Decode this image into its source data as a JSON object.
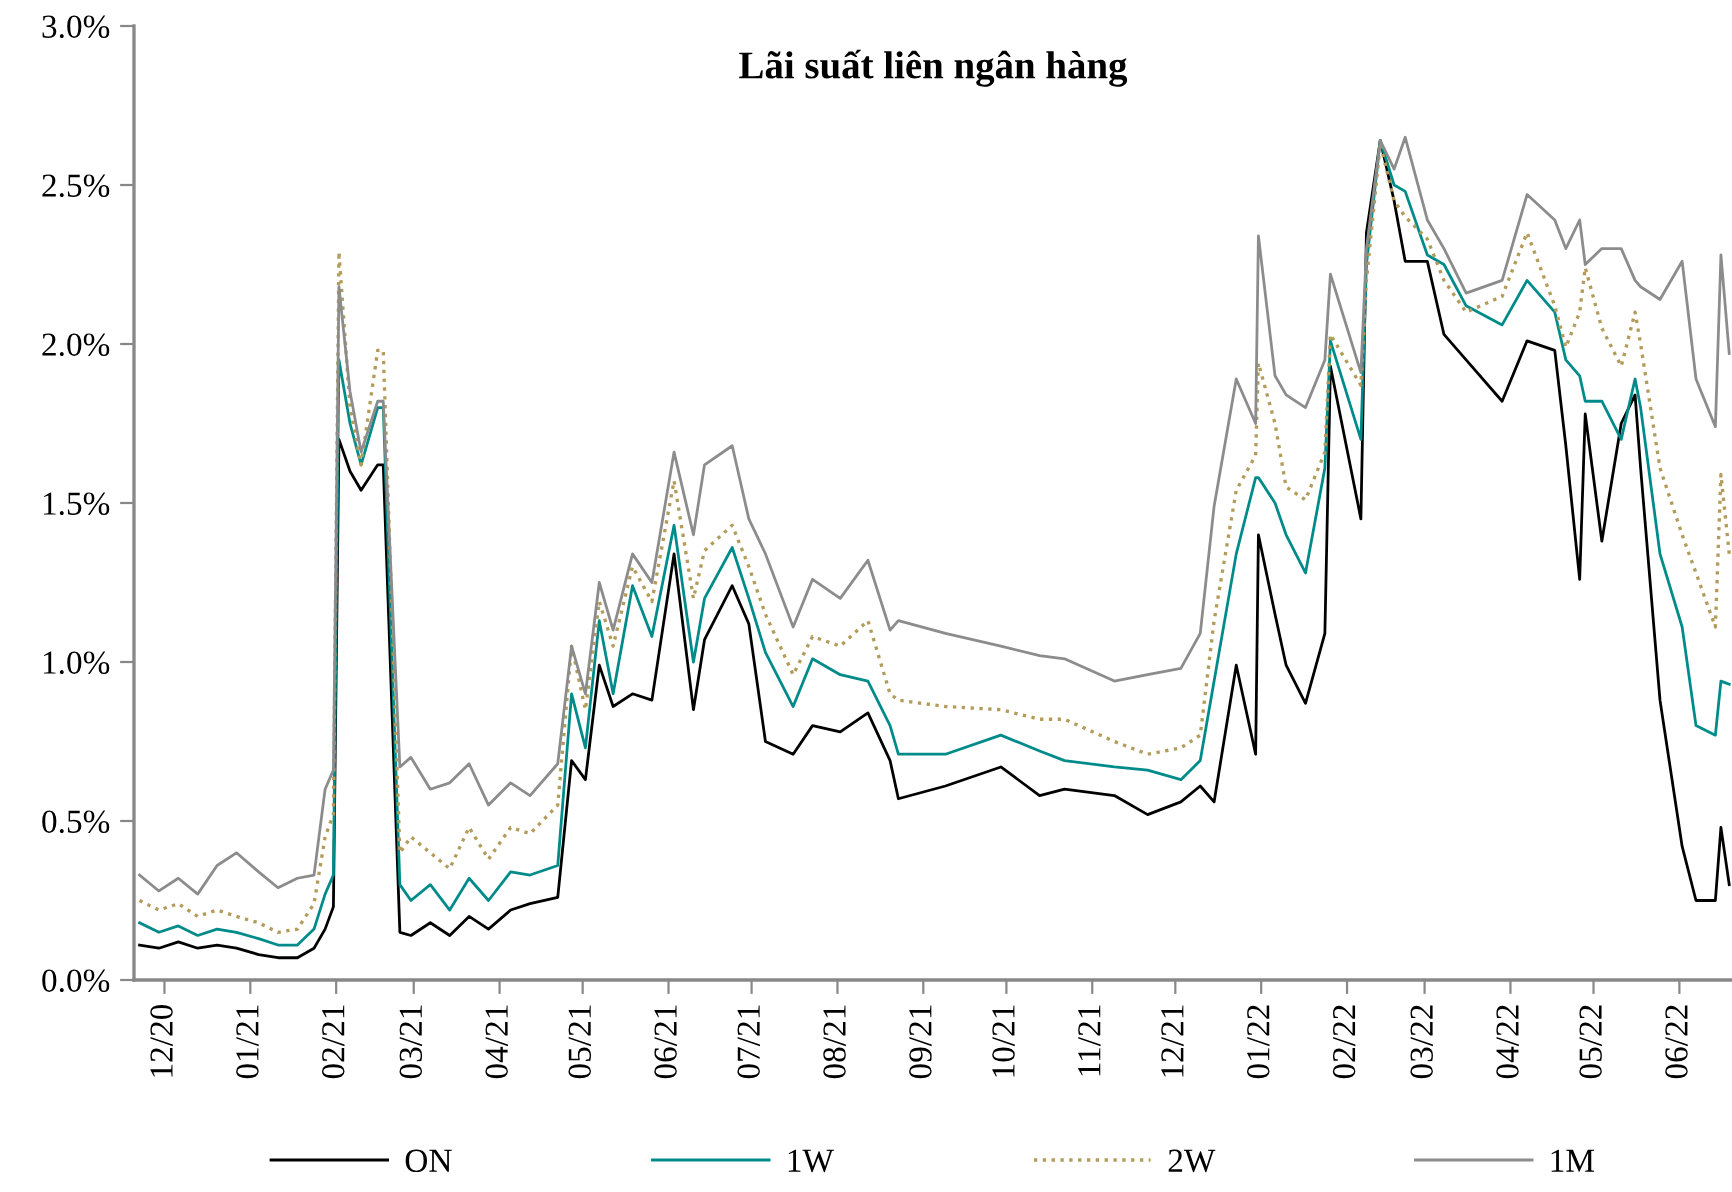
{
  "chart_data": {
    "type": "line",
    "title": "Lãi suất liên ngân hàng",
    "x": [
      "2020-11-22",
      "2020-11-29",
      "2020-12-06",
      "2020-12-13",
      "2020-12-20",
      "2020-12-27",
      "2021-01-04",
      "2021-01-11",
      "2021-01-18",
      "2021-01-24",
      "2021-01-28",
      "2021-01-31",
      "2021-02-02",
      "2021-02-06",
      "2021-02-10",
      "2021-02-16",
      "2021-02-18",
      "2021-02-24",
      "2021-02-28",
      "2021-03-07",
      "2021-03-14",
      "2021-03-21",
      "2021-03-28",
      "2021-04-05",
      "2021-04-12",
      "2021-04-22",
      "2021-04-27",
      "2021-05-02",
      "2021-05-07",
      "2021-05-12",
      "2021-05-19",
      "2021-05-26",
      "2021-06-03",
      "2021-06-10",
      "2021-06-14",
      "2021-06-24",
      "2021-06-30",
      "2021-07-06",
      "2021-07-16",
      "2021-07-23",
      "2021-08-02",
      "2021-08-12",
      "2021-08-20",
      "2021-08-23",
      "2021-09-09",
      "2021-09-29",
      "2021-10-13",
      "2021-10-22",
      "2021-11-09",
      "2021-11-21",
      "2021-12-03",
      "2021-12-10",
      "2021-12-15",
      "2021-12-23",
      "2021-12-30",
      "2021-12-31",
      "2022-01-06",
      "2022-01-10",
      "2022-01-17",
      "2022-01-24",
      "2022-01-26",
      "2022-02-06",
      "2022-02-08",
      "2022-02-13",
      "2022-02-18",
      "2022-02-22",
      "2022-03-02",
      "2022-03-08",
      "2022-03-16",
      "2022-03-29",
      "2022-04-07",
      "2022-04-17",
      "2022-04-21",
      "2022-04-26",
      "2022-04-28",
      "2022-05-04",
      "2022-05-11",
      "2022-05-16",
      "2022-05-18",
      "2022-05-25",
      "2022-06-02",
      "2022-06-07",
      "2022-06-14",
      "2022-06-16",
      "2022-06-19"
    ],
    "series": [
      {
        "name": "ON",
        "color": "#000000",
        "line_style": "solid",
        "values": [
          0.11,
          0.1,
          0.12,
          0.1,
          0.11,
          0.1,
          0.08,
          0.07,
          0.07,
          0.1,
          0.16,
          0.23,
          1.7,
          1.6,
          1.54,
          1.62,
          1.62,
          0.15,
          0.14,
          0.18,
          0.14,
          0.2,
          0.16,
          0.22,
          0.24,
          0.26,
          0.69,
          0.63,
          0.99,
          0.86,
          0.9,
          0.88,
          1.34,
          0.85,
          1.07,
          1.24,
          1.12,
          0.75,
          0.71,
          0.8,
          0.78,
          0.84,
          0.69,
          0.57,
          0.61,
          0.67,
          0.58,
          0.6,
          0.58,
          0.52,
          0.56,
          0.61,
          0.56,
          0.99,
          0.71,
          1.4,
          1.15,
          0.99,
          0.87,
          1.09,
          1.93,
          1.45,
          2.35,
          2.64,
          2.45,
          2.26,
          2.26,
          2.03,
          1.95,
          1.82,
          2.01,
          1.98,
          1.68,
          1.26,
          1.78,
          1.38,
          1.75,
          1.84,
          1.61,
          0.88,
          0.42,
          0.25,
          0.25,
          0.48,
          0.3
        ]
      },
      {
        "name": "1W",
        "color": "#008b8b",
        "line_style": "solid",
        "values": [
          0.18,
          0.15,
          0.17,
          0.14,
          0.16,
          0.15,
          0.13,
          0.11,
          0.11,
          0.16,
          0.27,
          0.33,
          1.95,
          1.75,
          1.62,
          1.8,
          1.8,
          0.3,
          0.25,
          0.3,
          0.22,
          0.32,
          0.25,
          0.34,
          0.33,
          0.36,
          0.9,
          0.73,
          1.13,
          0.9,
          1.24,
          1.08,
          1.43,
          1.0,
          1.2,
          1.36,
          1.2,
          1.03,
          0.86,
          1.01,
          0.96,
          0.94,
          0.8,
          0.71,
          0.71,
          0.77,
          0.72,
          0.69,
          0.67,
          0.66,
          0.63,
          0.69,
          0.94,
          1.34,
          1.58,
          1.58,
          1.5,
          1.4,
          1.28,
          1.61,
          2.01,
          1.7,
          2.25,
          2.64,
          2.5,
          2.48,
          2.28,
          2.25,
          2.12,
          2.06,
          2.2,
          2.1,
          1.95,
          1.9,
          1.82,
          1.82,
          1.7,
          1.89,
          1.8,
          1.34,
          1.11,
          0.8,
          0.77,
          0.94,
          0.93
        ]
      },
      {
        "name": "2W",
        "color": "#b39c5a",
        "line_style": "dotted",
        "values": [
          0.25,
          0.22,
          0.24,
          0.2,
          0.22,
          0.2,
          0.18,
          0.15,
          0.16,
          0.24,
          0.45,
          0.52,
          2.29,
          1.8,
          1.62,
          1.98,
          1.98,
          0.4,
          0.45,
          0.4,
          0.35,
          0.48,
          0.38,
          0.48,
          0.46,
          0.55,
          1.05,
          0.85,
          1.19,
          1.05,
          1.3,
          1.19,
          1.57,
          1.2,
          1.35,
          1.43,
          1.3,
          1.15,
          0.96,
          1.08,
          1.05,
          1.13,
          0.9,
          0.88,
          0.86,
          0.85,
          0.82,
          0.82,
          0.75,
          0.71,
          0.73,
          0.77,
          1.13,
          1.54,
          1.65,
          1.94,
          1.75,
          1.55,
          1.51,
          1.66,
          2.03,
          1.87,
          2.2,
          2.63,
          2.45,
          2.4,
          2.33,
          2.2,
          2.1,
          2.15,
          2.35,
          2.12,
          1.99,
          2.1,
          2.24,
          2.05,
          1.93,
          2.1,
          2.0,
          1.61,
          1.4,
          1.28,
          1.11,
          1.59,
          1.34
        ]
      },
      {
        "name": "1M",
        "color": "#8c8c8c",
        "line_style": "solid",
        "values": [
          0.33,
          0.28,
          0.32,
          0.27,
          0.36,
          0.4,
          0.34,
          0.29,
          0.32,
          0.33,
          0.6,
          0.66,
          2.18,
          1.85,
          1.66,
          1.82,
          1.82,
          0.67,
          0.7,
          0.6,
          0.62,
          0.68,
          0.55,
          0.62,
          0.58,
          0.68,
          1.05,
          0.9,
          1.25,
          1.1,
          1.34,
          1.25,
          1.66,
          1.4,
          1.62,
          1.68,
          1.45,
          1.34,
          1.11,
          1.26,
          1.2,
          1.32,
          1.1,
          1.13,
          1.09,
          1.05,
          1.02,
          1.01,
          0.94,
          0.96,
          0.98,
          1.09,
          1.49,
          1.89,
          1.75,
          2.34,
          1.9,
          1.84,
          1.8,
          1.95,
          2.22,
          1.91,
          2.3,
          2.64,
          2.55,
          2.65,
          2.39,
          2.3,
          2.16,
          2.2,
          2.47,
          2.39,
          2.3,
          2.39,
          2.25,
          2.3,
          2.3,
          2.2,
          2.18,
          2.14,
          2.26,
          1.89,
          1.74,
          2.28,
          1.97
        ]
      }
    ],
    "xlim": [
      "2020-11-20",
      "2022-06-20"
    ],
    "xticks": [
      {
        "value": "2020-12-01",
        "label": "12/20"
      },
      {
        "value": "2021-01-01",
        "label": "01/21"
      },
      {
        "value": "2021-02-01",
        "label": "02/21"
      },
      {
        "value": "2021-03-01",
        "label": "03/21"
      },
      {
        "value": "2021-04-01",
        "label": "04/21"
      },
      {
        "value": "2021-05-01",
        "label": "05/21"
      },
      {
        "value": "2021-06-01",
        "label": "06/21"
      },
      {
        "value": "2021-07-01",
        "label": "07/21"
      },
      {
        "value": "2021-08-01",
        "label": "08/21"
      },
      {
        "value": "2021-09-01",
        "label": "09/21"
      },
      {
        "value": "2021-10-01",
        "label": "10/21"
      },
      {
        "value": "2021-11-01",
        "label": "11/21"
      },
      {
        "value": "2021-12-01",
        "label": "12/21"
      },
      {
        "value": "2022-01-01",
        "label": "01/22"
      },
      {
        "value": "2022-02-01",
        "label": "02/22"
      },
      {
        "value": "2022-03-01",
        "label": "03/22"
      },
      {
        "value": "2022-04-01",
        "label": "04/22"
      },
      {
        "value": "2022-05-01",
        "label": "05/22"
      },
      {
        "value": "2022-06-01",
        "label": "06/22"
      }
    ],
    "ylim": [
      0,
      3
    ],
    "yticks": [
      {
        "value": 0,
        "label": "0.0%"
      },
      {
        "value": 0.5,
        "label": "0.5%"
      },
      {
        "value": 1,
        "label": "1.0%"
      },
      {
        "value": 1.5,
        "label": "1.5%"
      },
      {
        "value": 2,
        "label": "2.0%"
      },
      {
        "value": 2.5,
        "label": "2.5%"
      },
      {
        "value": 3,
        "label": "3.0%"
      }
    ],
    "grid": false,
    "legend": "bottom",
    "marker": "none"
  }
}
